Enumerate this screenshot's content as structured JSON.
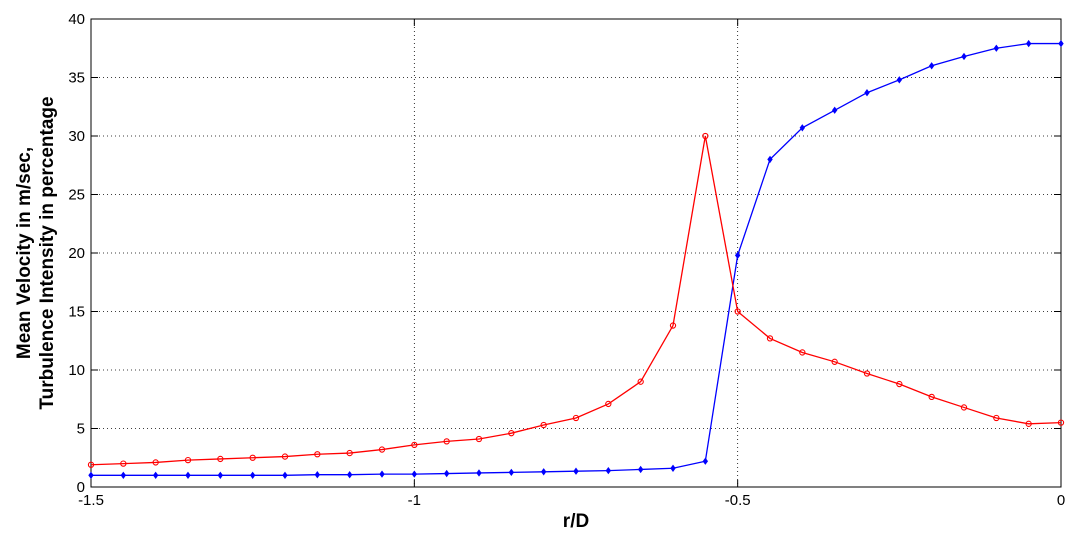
{
  "chart_data": {
    "type": "line",
    "title": "",
    "xlabel": "r/D",
    "ylabel_lines": [
      "Mean Velocity in m/sec,",
      "Turbulence Intensity in percentage"
    ],
    "xlim": [
      -1.5,
      0
    ],
    "ylim": [
      0,
      40
    ],
    "xticks": [
      -1.5,
      -1,
      -0.5,
      0
    ],
    "xtick_labels": [
      "-1.5",
      "-1",
      "-0.5",
      "0"
    ],
    "yticks": [
      0,
      5,
      10,
      15,
      20,
      25,
      30,
      35,
      40
    ],
    "ytick_labels": [
      "0",
      "5",
      "10",
      "15",
      "20",
      "25",
      "30",
      "35",
      "40"
    ],
    "grid": true,
    "x": [
      -1.5,
      -1.45,
      -1.4,
      -1.35,
      -1.3,
      -1.25,
      -1.2,
      -1.15,
      -1.1,
      -1.05,
      -1.0,
      -0.95,
      -0.9,
      -0.85,
      -0.8,
      -0.75,
      -0.7,
      -0.65,
      -0.6,
      -0.55,
      -0.5,
      -0.45,
      -0.4,
      -0.35,
      -0.3,
      -0.25,
      -0.2,
      -0.15,
      -0.1,
      -0.05,
      0
    ],
    "series": [
      {
        "color": "#0000ff",
        "marker": "diamond",
        "values": [
          1.0,
          1.0,
          1.0,
          1.0,
          1.0,
          1.0,
          1.0,
          1.05,
          1.05,
          1.1,
          1.1,
          1.15,
          1.2,
          1.25,
          1.3,
          1.35,
          1.4,
          1.5,
          1.6,
          2.2,
          19.8,
          28.0,
          30.7,
          32.2,
          33.7,
          34.8,
          36.0,
          36.8,
          37.5,
          37.9,
          37.9
        ]
      },
      {
        "color": "#ff0000",
        "marker": "circle",
        "values": [
          1.9,
          2.0,
          2.1,
          2.3,
          2.4,
          2.5,
          2.6,
          2.8,
          2.9,
          3.2,
          3.6,
          3.9,
          4.1,
          4.6,
          5.3,
          5.9,
          7.1,
          9.0,
          13.8,
          30.0,
          15.0,
          12.7,
          11.5,
          10.7,
          9.7,
          8.8,
          7.7,
          6.8,
          5.9,
          5.4,
          5.5
        ]
      }
    ]
  }
}
